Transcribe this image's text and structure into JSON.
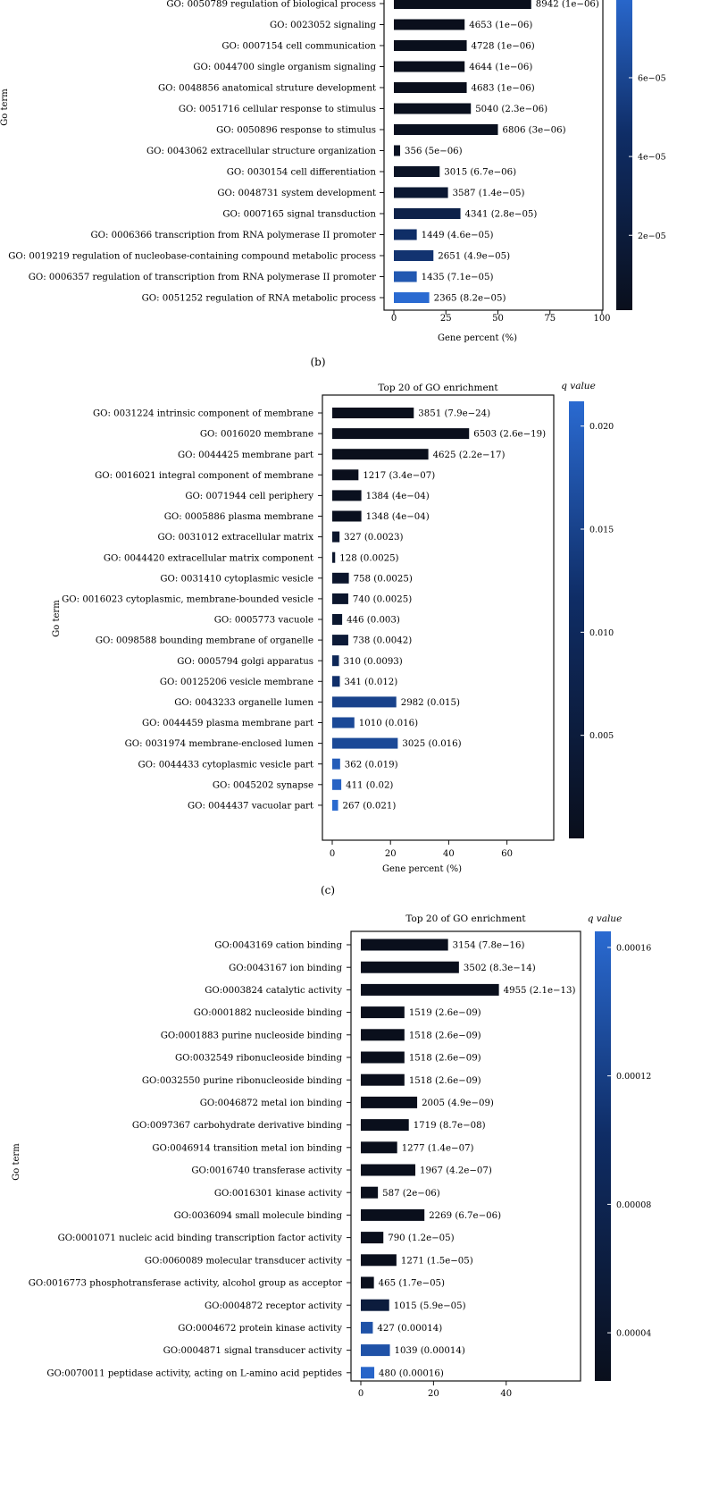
{
  "panels": [
    {
      "panel_label": "(b)",
      "chart_data": {
        "type": "bar",
        "orientation": "horizontal",
        "title": "",
        "xlabel": "Gene percent (%)",
        "ylabel": "Go term",
        "xlim": [
          0,
          100
        ],
        "xticks": [
          0,
          25,
          50,
          75,
          100
        ],
        "colorbar": {
          "label": "",
          "ticks": [
            "2e−05",
            "4e−05",
            "6e−05"
          ],
          "tick_values": [
            2e-05,
            4e-05,
            6e-05
          ],
          "range": [
            1e-06,
            8.2e-05
          ]
        },
        "categories": [
          "GO: 0050789 regulation of biological process",
          "GO: 0023052 signaling",
          "GO: 0007154 cell communication",
          "GO: 0044700 single organism signaling",
          "GO: 0048856 anatomical struture development",
          "GO: 0051716 cellular response to stimulus",
          "GO: 0050896 response to stimulus",
          "GO: 0043062 extracellular structure organization",
          "GO: 0030154 cell differentiation",
          "GO: 0048731 system development",
          "GO: 0007165 signal transduction",
          "GO: 0006366 transcription from RNA polymerase II promoter",
          "GO: 0019219 regulation of nucleobase-containing compound metabolic process",
          "GO: 0006357 regulation of transcription from RNA polymerase II promoter",
          "GO: 0051252 regulation of RNA metabolic process"
        ],
        "values": [
          66,
          34,
          35,
          34,
          35,
          37,
          50,
          3,
          22,
          26,
          32,
          11,
          19,
          11,
          17
        ],
        "q_values": [
          1e-06,
          1e-06,
          1e-06,
          1e-06,
          1e-06,
          2.3e-06,
          3e-06,
          5e-06,
          6.7e-06,
          1.4e-05,
          2.8e-05,
          4.6e-05,
          4.9e-05,
          7.1e-05,
          8.2e-05
        ],
        "bar_labels": [
          "8942 (1e−06)",
          "4653 (1e−06)",
          "4728 (1e−06)",
          "4644 (1e−06)",
          "4683 (1e−06)",
          "5040 (2.3e−06)",
          "6806 (3e−06)",
          "356 (5e−06)",
          "3015 (6.7e−06)",
          "3587 (1.4e−05)",
          "4341 (2.8e−05)",
          "1449 (4.6e−05)",
          "2651 (4.9e−05)",
          "1435 (7.1e−05)",
          "2365 (8.2e−05)"
        ]
      }
    },
    {
      "panel_label": "(c)",
      "chart_data": {
        "type": "bar",
        "orientation": "horizontal",
        "title": "Top 20 of GO enrichment",
        "xlabel": "Gene percent (%)",
        "ylabel": "Go term",
        "xlim": [
          0,
          73
        ],
        "xticks": [
          0,
          20,
          40,
          60
        ],
        "colorbar": {
          "label": "q value",
          "ticks": [
            "0.005",
            "0.010",
            "0.015",
            "0.020"
          ],
          "tick_values": [
            0.005,
            0.01,
            0.015,
            0.02
          ],
          "range": [
            0,
            0.0212
          ]
        },
        "categories": [
          "GO: 0031224 intrinsic component of membrane",
          "GO: 0016020 membrane",
          "GO: 0044425 membrane part",
          "GO: 0016021 integral component of membrane",
          "GO: 0071944 cell periphery",
          "GO: 0005886 plasma membrane",
          "GO: 0031012 extracellular matrix",
          "GO: 0044420 extracellular matrix component",
          "GO: 0031410 cytoplasmic vesicle",
          "GO: 0016023 cytoplasmic, membrane-bounded vesicle",
          "GO: 0005773 vacuole",
          "GO: 0098588 bounding membrane of organelle",
          "GO: 0005794 golgi apparatus",
          "GO: 00125206 vesicle membrane",
          "GO: 0043233 organelle lumen",
          "GO: 0044459 plasma membrane part",
          "GO: 0031974 membrane-enclosed lumen",
          "GO: 0044433 cytoplasmic vesicle part",
          "GO: 0045202 synapse",
          "GO: 0044437 vacuolar part"
        ],
        "values": [
          28,
          47,
          33,
          9,
          10,
          10,
          2.5,
          1,
          5.7,
          5.5,
          3.4,
          5.5,
          2.3,
          2.6,
          22,
          7.6,
          22.5,
          2.7,
          3.1,
          2
        ],
        "q_values": [
          7.9e-24,
          2.6e-19,
          2.2e-17,
          3.4e-07,
          0.0004,
          0.0004,
          0.0023,
          0.0025,
          0.0025,
          0.0025,
          0.003,
          0.0042,
          0.0093,
          0.012,
          0.015,
          0.016,
          0.016,
          0.019,
          0.02,
          0.021
        ],
        "bar_labels": [
          "3851 (7.9e−24)",
          "6503 (2.6e−19)",
          "4625 (2.2e−17)",
          "1217 (3.4e−07)",
          "1384 (4e−04)",
          "1348 (4e−04)",
          "327 (0.0023)",
          "128 (0.0025)",
          "758 (0.0025)",
          "740 (0.0025)",
          "446 (0.003)",
          "738 (0.0042)",
          "310 (0.0093)",
          "341 (0.012)",
          "2982 (0.015)",
          "1010 (0.016)",
          "3025 (0.016)",
          "362 (0.019)",
          "411 (0.02)",
          "267 (0.021)"
        ]
      }
    },
    {
      "panel_label": "",
      "chart_data": {
        "type": "bar",
        "orientation": "horizontal",
        "title": "Top 20 of GO enrichment",
        "xlabel": "",
        "ylabel": "Go term",
        "xlim": [
          0,
          58
        ],
        "xticks": [
          0,
          20,
          40
        ],
        "colorbar": {
          "label": "q value",
          "ticks": [
            "0.00004",
            "0.00008",
            "0.00012",
            "0.00016"
          ],
          "tick_values": [
            4e-05,
            8e-05,
            0.00012,
            0.00016
          ],
          "range": [
            2.5e-05,
            0.000165
          ]
        },
        "categories": [
          "GO:0043169 cation binding",
          "GO:0043167 ion binding",
          "GO:0003824 catalytic activity",
          "GO:0001882 nucleoside binding",
          "GO:0001883 purine nucleoside binding",
          "GO:0032549 ribonucleoside binding",
          "GO:0032550 purine ribonucleoside binding",
          "GO:0046872 metal ion binding",
          "GO:0097367 carbohydrate derivative binding",
          "GO:0046914 transition metal ion binding",
          "GO:0016740 transferase activity",
          "GO:0016301 kinase activity",
          "GO:0036094 small molecule binding",
          "GO:0001071 nucleic acid binding transcription factor activity",
          "GO:0060089 molecular transducer activity",
          "GO:0016773 phosphotransferase activity, alcohol group as acceptor",
          "GO:0004872 receptor activity",
          "GO:0004672 protein kinase activity",
          "GO:0004871 signal transducer activity",
          "GO:0070011 peptidase activity, acting on L-amino acid peptides"
        ],
        "values": [
          24,
          27,
          38,
          12,
          12,
          12,
          12,
          15.5,
          13.2,
          10,
          15,
          4.7,
          17.5,
          6.2,
          9.8,
          3.6,
          7.8,
          3.3,
          8,
          3.7
        ],
        "q_values": [
          7.8e-16,
          8.3e-14,
          2.1e-13,
          2.6e-09,
          2.6e-09,
          2.6e-09,
          2.6e-09,
          4.9e-09,
          8.7e-08,
          1.4e-07,
          4.2e-07,
          2e-06,
          6.7e-06,
          1.2e-05,
          1.5e-05,
          1.7e-05,
          5.9e-05,
          0.00014,
          0.00014,
          0.00016
        ],
        "bar_labels": [
          "3154 (7.8e−16)",
          "3502 (8.3e−14)",
          "4955 (2.1e−13)",
          "1519 (2.6e−09)",
          "1518 (2.6e−09)",
          "1518 (2.6e−09)",
          "1518 (2.6e−09)",
          "2005 (4.9e−09)",
          "1719 (8.7e−08)",
          "1277 (1.4e−07)",
          "1967 (4.2e−07)",
          "587 (2e−06)",
          "2269 (6.7e−06)",
          "790 (1.2e−05)",
          "1271 (1.5e−05)",
          "465 (1.7e−05)",
          "1015 (5.9e−05)",
          "427 (0.00014)",
          "1039 (0.00014)",
          "480 (0.00016)"
        ]
      }
    }
  ],
  "colors": {
    "dark": "#0b1426",
    "mid": "#0f2d66",
    "light": "#2a6ad1",
    "frame": "#111111"
  }
}
